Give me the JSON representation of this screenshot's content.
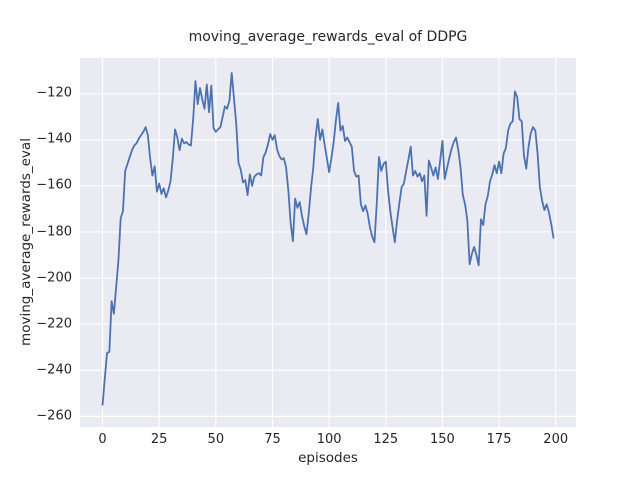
{
  "chart_data": {
    "type": "line",
    "title": "moving_average_rewards_eval of DDPG",
    "xlabel": "episodes",
    "ylabel": "moving_average_rewards_eval",
    "legend": null,
    "grid": true,
    "x_start": 0,
    "x_step": 1,
    "x_ticks": [
      0,
      25,
      50,
      75,
      100,
      125,
      150,
      175,
      200
    ],
    "y_ticks": [
      -120,
      -140,
      -160,
      -180,
      -200,
      -220,
      -240,
      -260
    ],
    "x_tick_labels": [
      "0",
      "25",
      "50",
      "75",
      "100",
      "125",
      "150",
      "175",
      "200"
    ],
    "y_tick_labels": [
      "−120",
      "−140",
      "−160",
      "−180",
      "−200",
      "−220",
      "−240",
      "−260"
    ],
    "xlim": [
      -9.95,
      208.95
    ],
    "ylim": [
      -264.9,
      -104.5
    ],
    "style": {
      "line_color": "#4C72B0",
      "line_width": 1.8,
      "plot_bg": "#EAEAF2",
      "grid_color": "#FFFFFF",
      "grid_width": 1.1,
      "figure_bg": "#FFFFFF",
      "text_color": "#262626"
    },
    "values": [
      -255,
      -243.5,
      -232.5,
      -232,
      -210,
      -215.5,
      -204,
      -192.5,
      -174,
      -171,
      -153.5,
      -150.5,
      -147.5,
      -144.5,
      -142.5,
      -141.5,
      -139.5,
      -138,
      -136.5,
      -134.5,
      -138,
      -148,
      -155.5,
      -151.5,
      -162.5,
      -159,
      -163.5,
      -161,
      -165,
      -162,
      -158,
      -148,
      -135.5,
      -139,
      -144.5,
      -139.5,
      -141.5,
      -141,
      -142,
      -142.5,
      -131,
      -114.5,
      -124.5,
      -117.5,
      -122.5,
      -126.5,
      -116,
      -128,
      -116.5,
      -135,
      -136.5,
      -135.5,
      -134.5,
      -130,
      -125.5,
      -126.5,
      -123,
      -111,
      -122,
      -133,
      -150,
      -153,
      -158.5,
      -157.5,
      -164,
      -155,
      -160,
      -156,
      -155,
      -154.5,
      -155.5,
      -147.5,
      -145.5,
      -142,
      -137.5,
      -140,
      -138,
      -144,
      -147,
      -148.5,
      -148,
      -152,
      -162,
      -176,
      -184,
      -165.5,
      -169.5,
      -167,
      -173,
      -177.5,
      -181,
      -172,
      -161,
      -152,
      -139,
      -131,
      -140,
      -135.5,
      -142,
      -148,
      -154,
      -148,
      -141,
      -131.5,
      -124,
      -136,
      -134,
      -140.5,
      -139,
      -141,
      -143,
      -153.5,
      -156,
      -155.5,
      -168,
      -171,
      -168.5,
      -172,
      -178,
      -182,
      -184.5,
      -168,
      -147.5,
      -153.5,
      -150.5,
      -149.5,
      -162,
      -171,
      -178,
      -184.5,
      -175,
      -167.5,
      -160.5,
      -159,
      -153.5,
      -148.5,
      -143,
      -155.5,
      -153.5,
      -156,
      -154.5,
      -158,
      -155.5,
      -173,
      -149,
      -152,
      -155.5,
      -152,
      -157,
      -149,
      -140.5,
      -157,
      -152.5,
      -148,
      -144,
      -141,
      -139,
      -144.5,
      -152,
      -164,
      -168,
      -175,
      -194,
      -189.5,
      -186.5,
      -190,
      -194.5,
      -174.5,
      -177,
      -168,
      -164.5,
      -158,
      -155,
      -151,
      -154.5,
      -149.5,
      -154.5,
      -146,
      -143.5,
      -136,
      -133,
      -132,
      -119,
      -121.5,
      -131,
      -132,
      -147,
      -152.5,
      -143,
      -137,
      -134.5,
      -136,
      -146,
      -160.5,
      -166.5,
      -170.5,
      -168,
      -171.5,
      -176.5,
      -182.5
    ]
  }
}
